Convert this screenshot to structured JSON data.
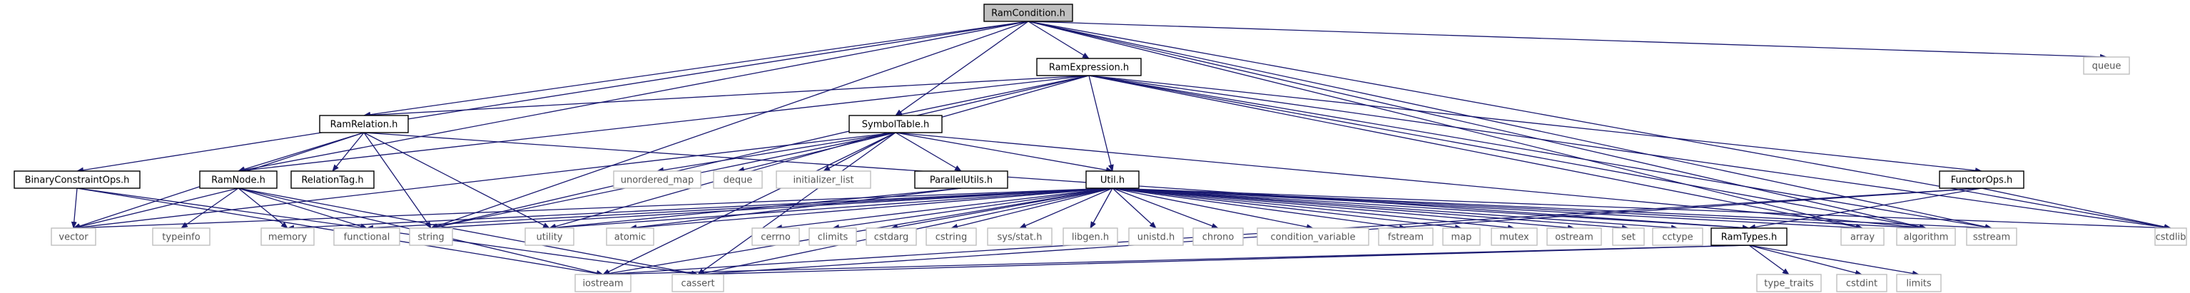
{
  "graph": {
    "root": "RamCondition.h",
    "nodes": [
      {
        "id": "ramcondition",
        "label": "RamCondition.h",
        "kind": "root"
      },
      {
        "id": "queue",
        "label": "queue",
        "kind": "external"
      },
      {
        "id": "ramexpression",
        "label": "RamExpression.h",
        "kind": "project"
      },
      {
        "id": "ramrelation",
        "label": "RamRelation.h",
        "kind": "project"
      },
      {
        "id": "symboltable",
        "label": "SymbolTable.h",
        "kind": "project"
      },
      {
        "id": "binaryconstraintops",
        "label": "BinaryConstraintOps.h",
        "kind": "project"
      },
      {
        "id": "ramnode",
        "label": "RamNode.h",
        "kind": "project"
      },
      {
        "id": "relationtag",
        "label": "RelationTag.h",
        "kind": "project"
      },
      {
        "id": "unordered_map",
        "label": "unordered_map",
        "kind": "external"
      },
      {
        "id": "deque",
        "label": "deque",
        "kind": "external"
      },
      {
        "id": "initializer_list",
        "label": "initializer_list",
        "kind": "external"
      },
      {
        "id": "parallelutils",
        "label": "ParallelUtils.h",
        "kind": "project"
      },
      {
        "id": "util",
        "label": "Util.h",
        "kind": "project"
      },
      {
        "id": "functorops",
        "label": "FunctorOps.h",
        "kind": "project"
      },
      {
        "id": "cstdlib",
        "label": "cstdlib",
        "kind": "external"
      },
      {
        "id": "vector",
        "label": "vector",
        "kind": "external"
      },
      {
        "id": "typeinfo",
        "label": "typeinfo",
        "kind": "external"
      },
      {
        "id": "memory",
        "label": "memory",
        "kind": "external"
      },
      {
        "id": "functional",
        "label": "functional",
        "kind": "external"
      },
      {
        "id": "string",
        "label": "string",
        "kind": "external"
      },
      {
        "id": "utility",
        "label": "utility",
        "kind": "external"
      },
      {
        "id": "atomic",
        "label": "atomic",
        "kind": "external"
      },
      {
        "id": "cerrno",
        "label": "cerrno",
        "kind": "external"
      },
      {
        "id": "climits",
        "label": "climits",
        "kind": "external"
      },
      {
        "id": "cstdarg",
        "label": "cstdarg",
        "kind": "external"
      },
      {
        "id": "cstring",
        "label": "cstring",
        "kind": "external"
      },
      {
        "id": "sysstat",
        "label": "sys/stat.h",
        "kind": "external"
      },
      {
        "id": "libgen",
        "label": "libgen.h",
        "kind": "external"
      },
      {
        "id": "unistd",
        "label": "unistd.h",
        "kind": "external"
      },
      {
        "id": "chrono",
        "label": "chrono",
        "kind": "external"
      },
      {
        "id": "condition_variable",
        "label": "condition_variable",
        "kind": "external"
      },
      {
        "id": "fstream",
        "label": "fstream",
        "kind": "external"
      },
      {
        "id": "map",
        "label": "map",
        "kind": "external"
      },
      {
        "id": "mutex",
        "label": "mutex",
        "kind": "external"
      },
      {
        "id": "ostream",
        "label": "ostream",
        "kind": "external"
      },
      {
        "id": "set",
        "label": "set",
        "kind": "external"
      },
      {
        "id": "cctype",
        "label": "cctype",
        "kind": "external"
      },
      {
        "id": "ramtypes",
        "label": "RamTypes.h",
        "kind": "project"
      },
      {
        "id": "array",
        "label": "array",
        "kind": "external"
      },
      {
        "id": "algorithm",
        "label": "algorithm",
        "kind": "external"
      },
      {
        "id": "sstream",
        "label": "sstream",
        "kind": "external"
      },
      {
        "id": "iostream",
        "label": "iostream",
        "kind": "external"
      },
      {
        "id": "cassert",
        "label": "cassert",
        "kind": "external"
      },
      {
        "id": "type_traits",
        "label": "type_traits",
        "kind": "external"
      },
      {
        "id": "cstdint",
        "label": "cstdint",
        "kind": "external"
      },
      {
        "id": "limits",
        "label": "limits",
        "kind": "external"
      }
    ],
    "edges": [
      [
        "ramcondition",
        "ramexpression"
      ],
      [
        "ramcondition",
        "ramrelation"
      ],
      [
        "ramcondition",
        "symboltable"
      ],
      [
        "ramcondition",
        "binaryconstraintops"
      ],
      [
        "ramcondition",
        "ramnode"
      ],
      [
        "ramcondition",
        "string"
      ],
      [
        "ramcondition",
        "queue"
      ],
      [
        "ramcondition",
        "sstream"
      ],
      [
        "ramcondition",
        "cstdlib"
      ],
      [
        "ramcondition",
        "algorithm"
      ],
      [
        "ramcondition",
        "array"
      ],
      [
        "ramexpression",
        "ramrelation"
      ],
      [
        "ramexpression",
        "symboltable"
      ],
      [
        "ramexpression",
        "ramnode"
      ],
      [
        "ramexpression",
        "util"
      ],
      [
        "ramexpression",
        "functorops"
      ],
      [
        "ramexpression",
        "string"
      ],
      [
        "ramexpression",
        "array"
      ],
      [
        "ramexpression",
        "algorithm"
      ],
      [
        "ramexpression",
        "sstream"
      ],
      [
        "ramexpression",
        "cstdlib"
      ],
      [
        "ramexpression",
        "utility"
      ],
      [
        "ramrelation",
        "ramnode"
      ],
      [
        "ramrelation",
        "relationtag"
      ],
      [
        "ramrelation",
        "string"
      ],
      [
        "ramrelation",
        "vector"
      ],
      [
        "ramrelation",
        "utility"
      ],
      [
        "ramrelation",
        "ramtypes"
      ],
      [
        "symboltable",
        "unordered_map"
      ],
      [
        "symboltable",
        "deque"
      ],
      [
        "symboltable",
        "initializer_list"
      ],
      [
        "symboltable",
        "parallelutils"
      ],
      [
        "symboltable",
        "util"
      ],
      [
        "symboltable",
        "string"
      ],
      [
        "symboltable",
        "iostream"
      ],
      [
        "symboltable",
        "cassert"
      ],
      [
        "symboltable",
        "vector"
      ],
      [
        "symboltable",
        "algorithm"
      ],
      [
        "binaryconstraintops",
        "vector"
      ],
      [
        "binaryconstraintops",
        "iostream"
      ],
      [
        "binaryconstraintops",
        "cassert"
      ],
      [
        "ramnode",
        "vector"
      ],
      [
        "ramnode",
        "typeinfo"
      ],
      [
        "ramnode",
        "memory"
      ],
      [
        "ramnode",
        "functional"
      ],
      [
        "ramnode",
        "iostream"
      ],
      [
        "ramnode",
        "cassert"
      ],
      [
        "parallelutils",
        "atomic"
      ],
      [
        "parallelutils",
        "utility"
      ],
      [
        "util",
        "functional"
      ],
      [
        "util",
        "string"
      ],
      [
        "util",
        "utility"
      ],
      [
        "util",
        "atomic"
      ],
      [
        "util",
        "cerrno"
      ],
      [
        "util",
        "climits"
      ],
      [
        "util",
        "cstdarg"
      ],
      [
        "util",
        "cstring"
      ],
      [
        "util",
        "sysstat"
      ],
      [
        "util",
        "libgen"
      ],
      [
        "util",
        "unistd"
      ],
      [
        "util",
        "chrono"
      ],
      [
        "util",
        "condition_variable"
      ],
      [
        "util",
        "fstream"
      ],
      [
        "util",
        "map"
      ],
      [
        "util",
        "mutex"
      ],
      [
        "util",
        "ostream"
      ],
      [
        "util",
        "set"
      ],
      [
        "util",
        "cctype"
      ],
      [
        "util",
        "ramtypes"
      ],
      [
        "util",
        "array"
      ],
      [
        "util",
        "algorithm"
      ],
      [
        "util",
        "sstream"
      ],
      [
        "util",
        "cstdlib"
      ],
      [
        "util",
        "iostream"
      ],
      [
        "util",
        "cassert"
      ],
      [
        "util",
        "vector"
      ],
      [
        "util",
        "memory"
      ],
      [
        "functorops",
        "ramtypes"
      ],
      [
        "functorops",
        "cstdlib"
      ],
      [
        "functorops",
        "iostream"
      ],
      [
        "functorops",
        "cassert"
      ],
      [
        "ramtypes",
        "iostream"
      ],
      [
        "ramtypes",
        "cassert"
      ],
      [
        "ramtypes",
        "type_traits"
      ],
      [
        "ramtypes",
        "cstdint"
      ],
      [
        "ramtypes",
        "limits"
      ]
    ]
  },
  "colors": {
    "edge": "#191970",
    "project_border": "#000000",
    "external_border": "#bfbfbf",
    "external_text": "#555555",
    "root_fill": "#bfbfbf",
    "node_fill": "#ffffff"
  }
}
